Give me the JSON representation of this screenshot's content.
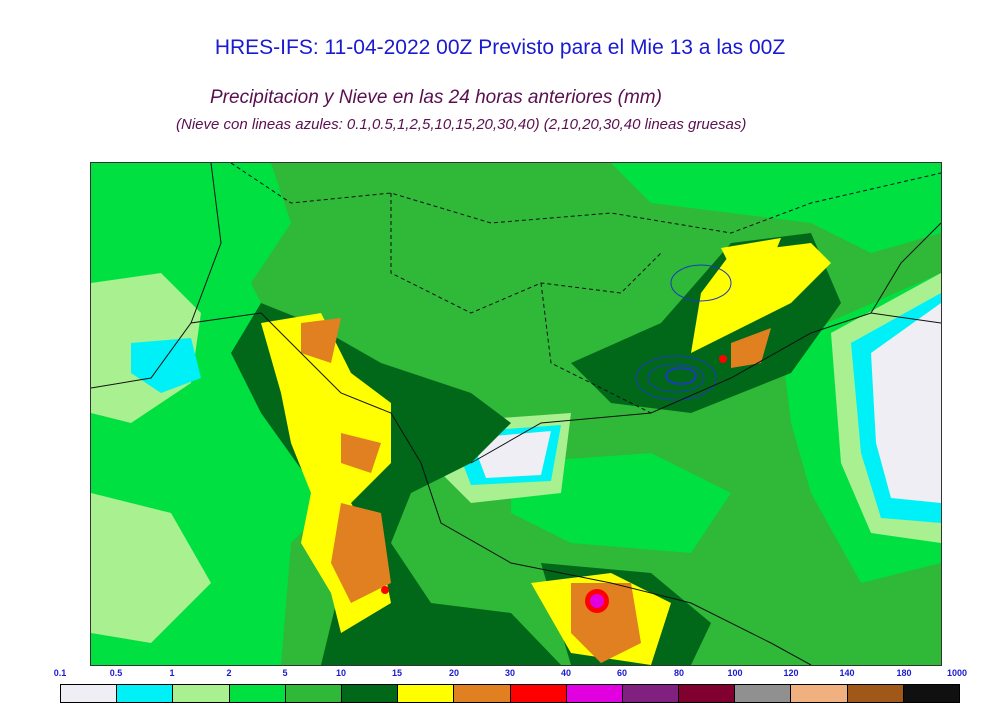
{
  "header": {
    "title": "HRES-IFS: 11-04-2022 00Z Previsto para el Mie 13 a las 00Z",
    "subtitle": "Precipitacion y Nieve en las 24 horas anteriores (mm)",
    "note": "(Nieve con lineas azules: 0.1,0.5,1,2,5,10,15,20,30,40)  (2,10,20,30,40 lineas gruesas)"
  },
  "legend": {
    "ticks": [
      "0.1",
      "0.5",
      "1",
      "2",
      "5",
      "10",
      "15",
      "20",
      "30",
      "40",
      "60",
      "80",
      "100",
      "120",
      "140",
      "180",
      "1000"
    ],
    "colors": [
      "#eeeef4",
      "#00f0f8",
      "#a8f090",
      "#00e040",
      "#30b838",
      "#006818",
      "#ffff00",
      "#e08020",
      "#ff0000",
      "#e000e0",
      "#802080",
      "#800030",
      "#909090",
      "#f0b080",
      "#a05818",
      "#101010"
    ]
  }
}
